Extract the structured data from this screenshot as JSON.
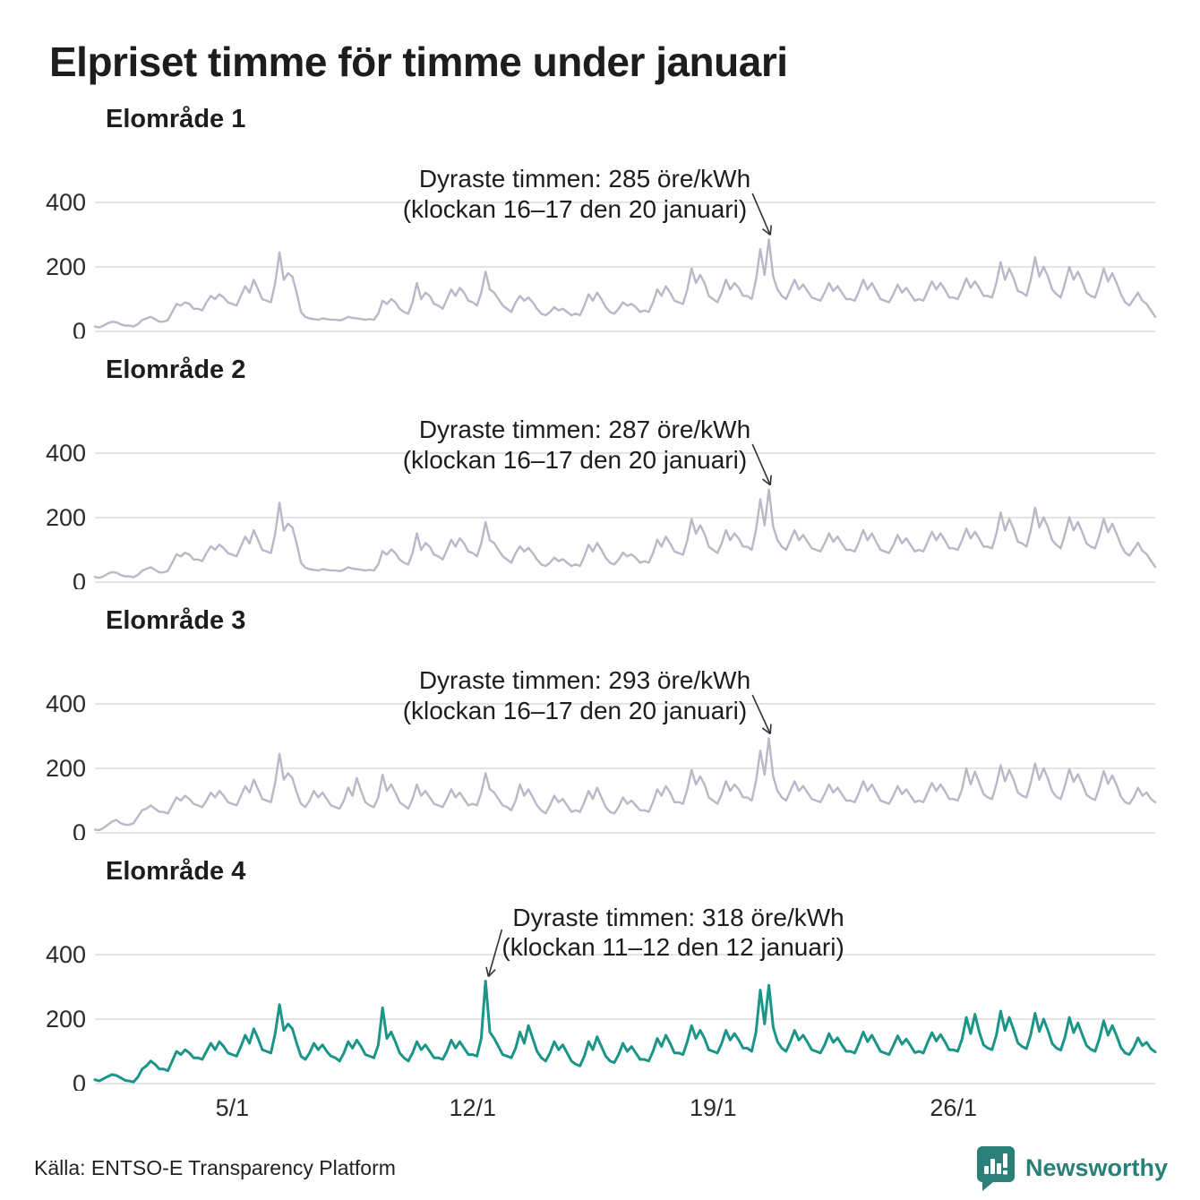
{
  "page": {
    "title": "Elpriset timme för timme under januari"
  },
  "axis": {
    "y_ticks": [
      0,
      200,
      400
    ],
    "x_ticks": [
      {
        "day": 5,
        "label": "5/1"
      },
      {
        "day": 12,
        "label": "12/1"
      },
      {
        "day": 19,
        "label": "19/1"
      },
      {
        "day": 26,
        "label": "26/1"
      }
    ],
    "ylim": [
      0,
      440
    ],
    "days": 31,
    "unit": "öre/kWh"
  },
  "colors": {
    "line_default": "#b9b7c8",
    "line_highlight": "#1a9588",
    "grid": "#e4e4e6",
    "tick_text": "#2b2b2b",
    "annotation_text": "#1d1d1d",
    "arrow": "#333333",
    "brand": "#2a7f78"
  },
  "footer": {
    "source": "Källa: ENTSO-E Transparency Platform",
    "brand": "Newsworthy",
    "brand_icon": "speech-bubble-bar-chart"
  },
  "chart_data": [
    {
      "type": "line",
      "title": "Elområde 1",
      "color": "#b9b7c8",
      "step_hours": 3,
      "annotation": {
        "line1": "Dyraste timmen: 285 öre/kWh",
        "line2": "(klockan 16–17 den 20 januari)",
        "peak_value": 285,
        "peak_day": 20,
        "peak_hour": 16,
        "side": "right"
      },
      "values": [
        15,
        12,
        18,
        25,
        30,
        28,
        22,
        18,
        18,
        15,
        22,
        35,
        40,
        45,
        38,
        30,
        30,
        35,
        60,
        85,
        80,
        90,
        85,
        70,
        70,
        65,
        90,
        110,
        100,
        115,
        105,
        90,
        85,
        80,
        110,
        140,
        120,
        160,
        130,
        100,
        95,
        90,
        150,
        245,
        160,
        180,
        170,
        120,
        60,
        45,
        40,
        38,
        36,
        40,
        38,
        36,
        36,
        34,
        38,
        45,
        42,
        40,
        38,
        36,
        38,
        36,
        55,
        95,
        85,
        100,
        90,
        70,
        60,
        55,
        90,
        150,
        100,
        120,
        110,
        85,
        80,
        70,
        100,
        130,
        110,
        135,
        120,
        95,
        90,
        80,
        120,
        185,
        130,
        120,
        100,
        80,
        70,
        60,
        90,
        110,
        95,
        105,
        90,
        70,
        55,
        50,
        60,
        75,
        65,
        70,
        60,
        50,
        55,
        50,
        80,
        115,
        95,
        120,
        100,
        75,
        60,
        55,
        70,
        90,
        80,
        85,
        75,
        60,
        65,
        60,
        90,
        130,
        110,
        140,
        120,
        95,
        90,
        85,
        130,
        195,
        150,
        175,
        150,
        110,
        100,
        90,
        120,
        160,
        130,
        150,
        135,
        110,
        110,
        100,
        160,
        255,
        175,
        285,
        170,
        130,
        110,
        100,
        130,
        160,
        130,
        145,
        125,
        105,
        100,
        95,
        120,
        150,
        125,
        140,
        120,
        100,
        100,
        95,
        125,
        160,
        130,
        150,
        125,
        100,
        95,
        90,
        115,
        145,
        120,
        135,
        115,
        95,
        100,
        95,
        125,
        155,
        130,
        150,
        130,
        105,
        105,
        100,
        130,
        165,
        135,
        155,
        135,
        110,
        110,
        105,
        150,
        215,
        160,
        195,
        165,
        125,
        120,
        110,
        160,
        230,
        170,
        200,
        170,
        130,
        115,
        105,
        150,
        200,
        160,
        185,
        155,
        120,
        110,
        105,
        145,
        195,
        155,
        180,
        150,
        115,
        90,
        80,
        100,
        120,
        95,
        85,
        65,
        45
      ]
    },
    {
      "type": "line",
      "title": "Elområde 2",
      "color": "#b9b7c8",
      "step_hours": 3,
      "annotation": {
        "line1": "Dyraste timmen: 287 öre/kWh",
        "line2": "(klockan 16–17 den 20 januari)",
        "peak_value": 287,
        "peak_day": 20,
        "peak_hour": 16,
        "side": "right"
      },
      "values": [
        16,
        13,
        18,
        26,
        31,
        29,
        22,
        18,
        18,
        15,
        22,
        35,
        41,
        46,
        38,
        30,
        30,
        35,
        60,
        86,
        80,
        91,
        85,
        70,
        70,
        65,
        90,
        111,
        100,
        116,
        105,
        90,
        85,
        80,
        110,
        141,
        120,
        161,
        130,
        100,
        95,
        90,
        150,
        246,
        160,
        181,
        170,
        120,
        60,
        45,
        40,
        38,
        36,
        40,
        38,
        36,
        36,
        34,
        38,
        46,
        42,
        40,
        38,
        36,
        38,
        36,
        55,
        96,
        85,
        101,
        90,
        70,
        60,
        55,
        90,
        151,
        100,
        121,
        110,
        85,
        80,
        70,
        100,
        131,
        110,
        136,
        120,
        95,
        90,
        80,
        120,
        186,
        130,
        121,
        100,
        80,
        70,
        60,
        90,
        111,
        95,
        106,
        90,
        70,
        55,
        50,
        60,
        76,
        65,
        71,
        60,
        50,
        55,
        50,
        80,
        116,
        95,
        121,
        100,
        75,
        60,
        55,
        70,
        91,
        80,
        86,
        75,
        60,
        65,
        60,
        90,
        131,
        110,
        141,
        120,
        95,
        90,
        85,
        130,
        196,
        150,
        176,
        150,
        110,
        100,
        90,
        120,
        161,
        130,
        151,
        135,
        110,
        110,
        100,
        162,
        257,
        176,
        287,
        172,
        130,
        110,
        100,
        130,
        161,
        130,
        146,
        125,
        105,
        100,
        95,
        120,
        151,
        125,
        141,
        120,
        100,
        100,
        95,
        125,
        161,
        130,
        151,
        125,
        100,
        95,
        90,
        115,
        146,
        120,
        136,
        115,
        95,
        100,
        95,
        125,
        156,
        130,
        151,
        130,
        105,
        105,
        100,
        130,
        166,
        135,
        156,
        135,
        110,
        110,
        105,
        150,
        216,
        160,
        196,
        165,
        125,
        120,
        110,
        160,
        231,
        170,
        201,
        170,
        130,
        115,
        105,
        150,
        201,
        160,
        186,
        155,
        120,
        110,
        105,
        145,
        196,
        155,
        181,
        150,
        115,
        92,
        82,
        102,
        122,
        97,
        87,
        66,
        47
      ]
    },
    {
      "type": "line",
      "title": "Elområde 3",
      "color": "#b9b7c8",
      "step_hours": 3,
      "annotation": {
        "line1": "Dyraste timmen: 293 öre/kWh",
        "line2": "(klockan 16–17 den 20 januari)",
        "peak_value": 293,
        "peak_day": 20,
        "peak_hour": 16,
        "side": "right"
      },
      "values": [
        10,
        8,
        15,
        25,
        35,
        40,
        30,
        25,
        25,
        30,
        50,
        70,
        75,
        85,
        75,
        65,
        65,
        60,
        85,
        110,
        100,
        115,
        105,
        90,
        85,
        80,
        100,
        125,
        110,
        130,
        115,
        95,
        90,
        85,
        115,
        145,
        125,
        165,
        135,
        105,
        100,
        95,
        155,
        245,
        165,
        185,
        170,
        125,
        90,
        80,
        100,
        130,
        110,
        125,
        105,
        85,
        80,
        75,
        100,
        140,
        115,
        170,
        130,
        95,
        85,
        80,
        110,
        180,
        130,
        150,
        125,
        95,
        85,
        75,
        105,
        150,
        115,
        130,
        110,
        90,
        85,
        80,
        105,
        135,
        110,
        125,
        105,
        85,
        90,
        85,
        125,
        185,
        135,
        125,
        105,
        85,
        80,
        70,
        100,
        150,
        115,
        135,
        110,
        85,
        70,
        60,
        85,
        115,
        95,
        105,
        85,
        65,
        70,
        65,
        95,
        130,
        105,
        140,
        110,
        80,
        65,
        60,
        80,
        110,
        90,
        100,
        85,
        70,
        70,
        65,
        95,
        135,
        115,
        145,
        125,
        95,
        95,
        90,
        135,
        195,
        150,
        175,
        150,
        110,
        100,
        90,
        120,
        160,
        130,
        150,
        135,
        110,
        110,
        100,
        160,
        255,
        180,
        293,
        175,
        130,
        110,
        100,
        130,
        160,
        130,
        145,
        125,
        105,
        100,
        95,
        120,
        150,
        125,
        140,
        120,
        100,
        100,
        95,
        125,
        160,
        130,
        150,
        125,
        100,
        95,
        90,
        115,
        145,
        120,
        135,
        115,
        95,
        100,
        95,
        125,
        155,
        130,
        150,
        130,
        105,
        105,
        100,
        135,
        200,
        150,
        190,
        155,
        120,
        110,
        105,
        150,
        210,
        160,
        195,
        165,
        125,
        115,
        110,
        155,
        215,
        165,
        200,
        168,
        128,
        112,
        105,
        148,
        198,
        158,
        182,
        152,
        118,
        108,
        102,
        142,
        192,
        152,
        178,
        148,
        112,
        95,
        90,
        110,
        140,
        115,
        125,
        105,
        95
      ]
    },
    {
      "type": "line",
      "title": "Elområde 4",
      "color": "#1a9588",
      "step_hours": 3,
      "annotation": {
        "line1": "Dyraste timmen: 318 öre/kWh",
        "line2": "(klockan 11–12 den 12 januari)",
        "peak_value": 318,
        "peak_day": 12,
        "peak_hour": 11,
        "side": "left"
      },
      "values": [
        12,
        8,
        15,
        22,
        28,
        25,
        18,
        10,
        8,
        5,
        20,
        45,
        55,
        70,
        60,
        45,
        45,
        40,
        70,
        100,
        90,
        105,
        95,
        80,
        80,
        75,
        100,
        125,
        105,
        130,
        115,
        95,
        90,
        85,
        115,
        150,
        125,
        170,
        140,
        105,
        100,
        95,
        155,
        245,
        165,
        185,
        170,
        125,
        85,
        75,
        95,
        125,
        105,
        120,
        100,
        85,
        80,
        70,
        95,
        130,
        110,
        135,
        115,
        90,
        85,
        80,
        120,
        235,
        140,
        160,
        130,
        95,
        80,
        70,
        95,
        130,
        105,
        120,
        100,
        80,
        80,
        75,
        100,
        135,
        110,
        130,
        110,
        90,
        90,
        85,
        140,
        318,
        160,
        140,
        115,
        90,
        85,
        80,
        110,
        160,
        125,
        180,
        140,
        100,
        80,
        70,
        95,
        130,
        105,
        120,
        95,
        70,
        60,
        55,
        85,
        130,
        105,
        145,
        115,
        85,
        70,
        65,
        90,
        125,
        100,
        115,
        95,
        75,
        75,
        70,
        100,
        140,
        115,
        150,
        125,
        95,
        95,
        90,
        130,
        180,
        140,
        165,
        140,
        105,
        100,
        95,
        125,
        165,
        135,
        155,
        135,
        110,
        110,
        100,
        160,
        290,
        185,
        305,
        175,
        130,
        110,
        100,
        130,
        165,
        135,
        150,
        128,
        105,
        100,
        95,
        120,
        155,
        128,
        142,
        120,
        100,
        100,
        95,
        125,
        160,
        130,
        150,
        125,
        100,
        95,
        90,
        118,
        148,
        122,
        138,
        118,
        96,
        100,
        95,
        128,
        158,
        132,
        152,
        130,
        105,
        105,
        100,
        138,
        205,
        155,
        215,
        160,
        120,
        110,
        105,
        150,
        225,
        165,
        205,
        168,
        126,
        115,
        108,
        152,
        218,
        162,
        200,
        165,
        124,
        110,
        104,
        145,
        205,
        158,
        188,
        152,
        118,
        106,
        100,
        140,
        195,
        150,
        180,
        148,
        112,
        95,
        90,
        112,
        142,
        118,
        128,
        108,
        98
      ]
    }
  ]
}
